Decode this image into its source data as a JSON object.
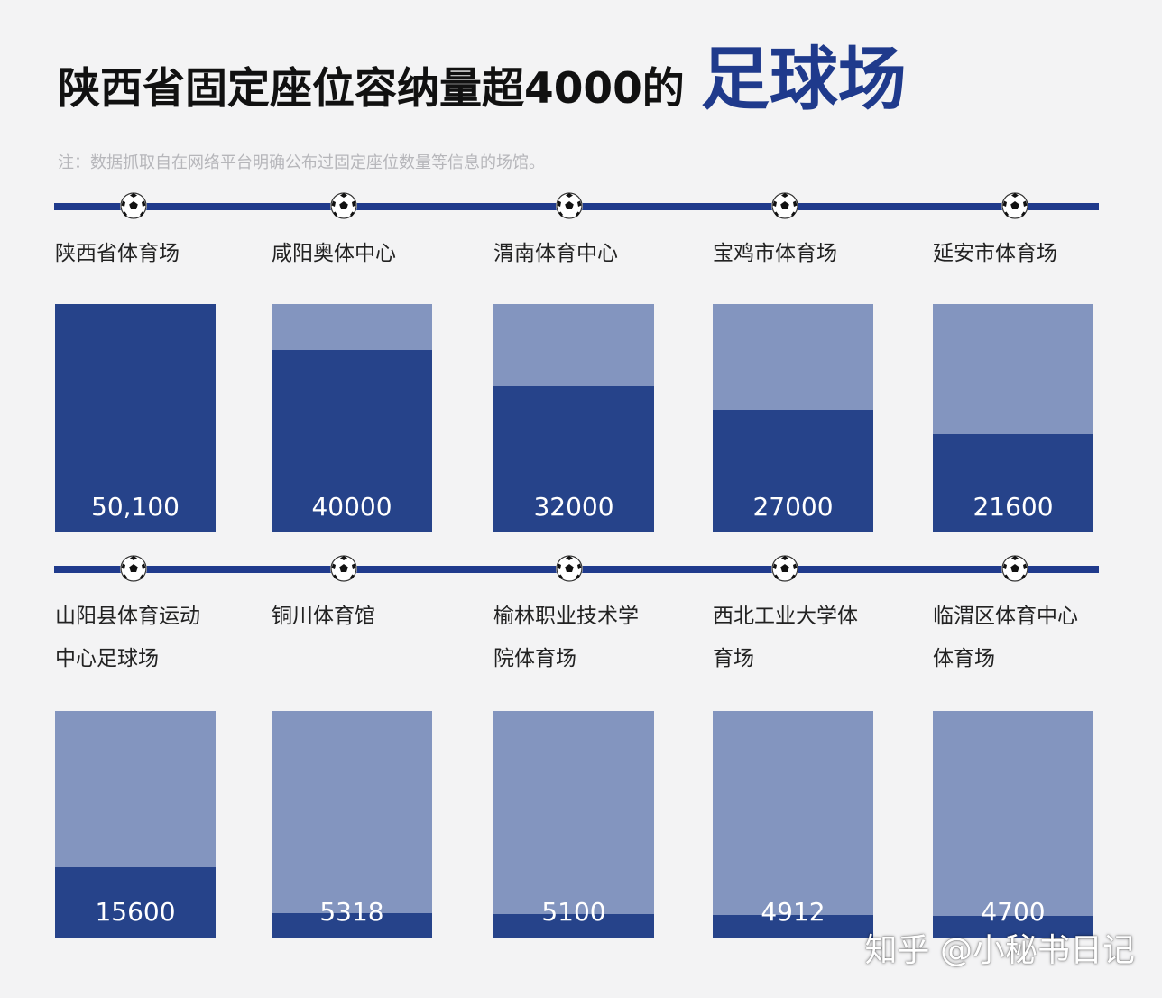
{
  "title": {
    "main": "陕西省固定座位容纳量超4000的",
    "accent": "足球场"
  },
  "note": "注：数据抓取自在网络平台明确公布过固定座位数量等信息的场馆。",
  "colors": {
    "bar_full": "#26438a",
    "bar_background": "#8395bf",
    "line": "#1f3a8c",
    "accent_title": "#1f3a8c"
  },
  "icons": {
    "timeline_marker": "soccer-ball-icon"
  },
  "watermark": "知乎 @小秘书日记",
  "chart_data": {
    "type": "bar",
    "scale_max": 50100,
    "categories": [
      "陕西省体育场",
      "咸阳奥体中心",
      "渭南体育中心",
      "宝鸡市体育场",
      "延安市体育场",
      "山阳县体育运动中心足球场",
      "铜川体育馆",
      "榆林职业技术学院体育场",
      "西北工业大学体育场",
      "临渭区体育中心体育场"
    ],
    "values": [
      50100,
      40000,
      32000,
      27000,
      21600,
      15600,
      5318,
      5100,
      4912,
      4700
    ],
    "value_labels": [
      "50,100",
      "40000",
      "32000",
      "27000",
      "21600",
      "15600",
      "5318",
      "5100",
      "4912",
      "4700"
    ]
  }
}
